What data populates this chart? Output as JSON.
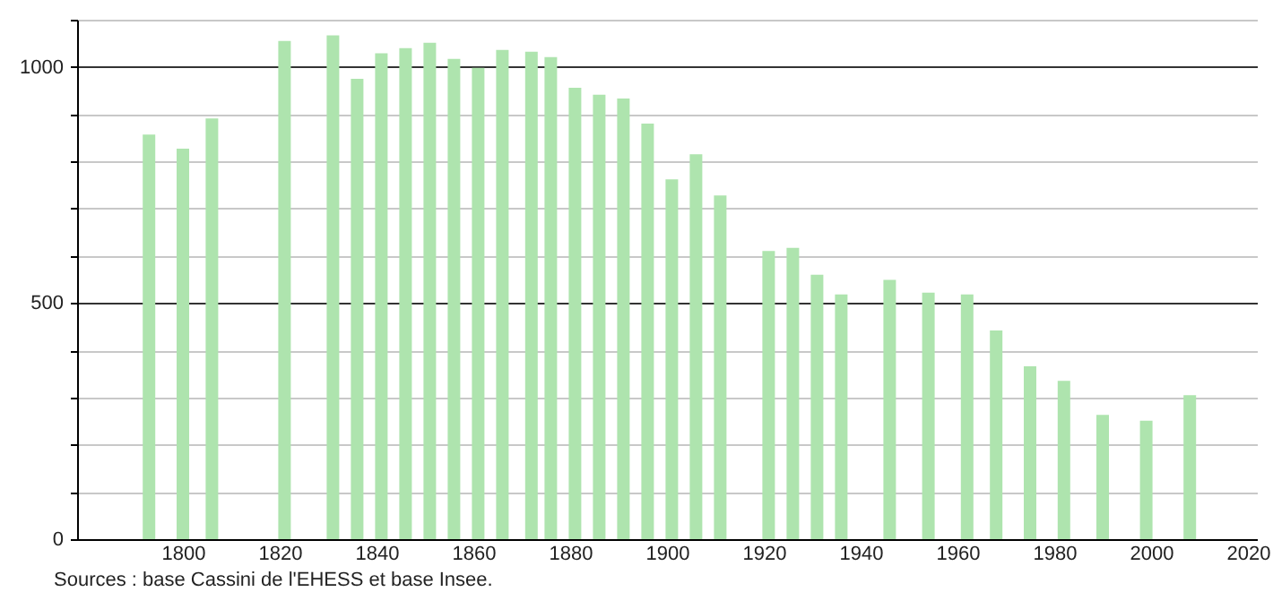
{
  "chart_data": {
    "type": "bar",
    "color": "#aee4ae",
    "x": [
      1793,
      1800,
      1806,
      1821,
      1831,
      1836,
      1841,
      1846,
      1851,
      1856,
      1861,
      1866,
      1872,
      1876,
      1881,
      1886,
      1891,
      1896,
      1901,
      1906,
      1911,
      1921,
      1926,
      1931,
      1936,
      1946,
      1954,
      1962,
      1968,
      1975,
      1982,
      1990,
      1999,
      2008
    ],
    "values": [
      857,
      827,
      891,
      1055,
      1067,
      975,
      1029,
      1040,
      1051,
      1017,
      998,
      1036,
      1032,
      1021,
      956,
      941,
      933,
      880,
      762,
      815,
      728,
      610,
      617,
      560,
      518,
      549,
      522,
      518,
      442,
      366,
      335,
      263,
      251,
      305
    ],
    "xlim": [
      1780,
      2020
    ],
    "xticks": [
      1800,
      1820,
      1840,
      1860,
      1880,
      1900,
      1920,
      1940,
      1960,
      1980,
      2000,
      2020
    ],
    "ylim": [
      0,
      1100
    ],
    "yticks": [
      0,
      {
        "value": 100,
        "label": null
      },
      {
        "value": 200,
        "label": null
      },
      {
        "value": 300,
        "label": null
      },
      {
        "value": 400,
        "label": null
      },
      500,
      {
        "value": 600,
        "label": null
      },
      {
        "value": 700,
        "label": null
      },
      {
        "value": 800,
        "label": null
      },
      {
        "value": 900,
        "label": null
      },
      1000,
      {
        "value": 1100,
        "label": null
      }
    ],
    "grid": "y",
    "annotations": [
      "Sources : base Cassini de l'EHESS et base Insee."
    ]
  }
}
